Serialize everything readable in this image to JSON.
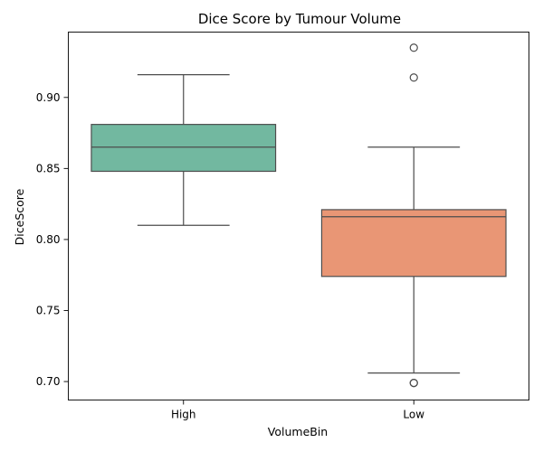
{
  "chart_data": {
    "type": "box",
    "title": "Dice Score by Tumour Volume",
    "xlabel": "VolumeBin",
    "ylabel": "DiceScore",
    "ylim": [
      0.687,
      0.946
    ],
    "yticks": [
      "0.70",
      "0.75",
      "0.80",
      "0.85",
      "0.90"
    ],
    "ytick_values": [
      0.7,
      0.75,
      0.8,
      0.85,
      0.9
    ],
    "grid": false,
    "categories": [
      "High",
      "Low"
    ],
    "boxes": [
      {
        "category": "High",
        "color": "#72b8a0",
        "whisker_low": 0.81,
        "q1": 0.848,
        "median": 0.865,
        "q3": 0.881,
        "whisker_high": 0.916,
        "outliers": []
      },
      {
        "category": "Low",
        "color": "#e99675",
        "whisker_low": 0.706,
        "q1": 0.774,
        "median": 0.816,
        "q3": 0.821,
        "whisker_high": 0.865,
        "outliers": [
          0.935,
          0.914,
          0.699,
          0.699
        ]
      }
    ]
  }
}
